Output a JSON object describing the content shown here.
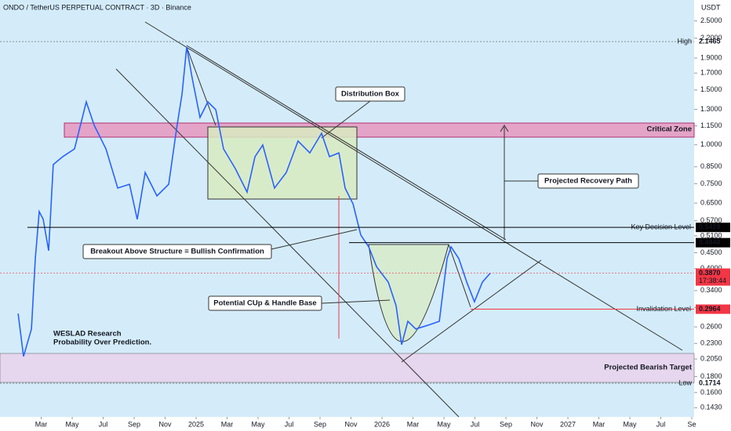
{
  "chart_data": {
    "type": "line",
    "title": "ONDO / TetherUS PERPETUAL CONTRACT · 3D · Binance",
    "currency": "USDT",
    "log_scale": true,
    "x": [
      0.51,
      0.86,
      1.37,
      1.62,
      1.87,
      2.13,
      2.48,
      2.78,
      3.39,
      4.15,
      4.91,
      5.42,
      6.18,
      6.94,
      7.7,
      8.2,
      8.71,
      9.47,
      10.23,
      10.73,
      11.09,
      11.39,
      11.75,
      12.25,
      12.76,
      13.27,
      13.77,
      14.53,
      15.29,
      15.8,
      16.3,
      17.06,
      17.82,
      18.58,
      19.34,
      20.1,
      20.61,
      21.22,
      21.62,
      22.13,
      22.63,
      23.14,
      23.65,
      24.41,
      24.91,
      25.27,
      25.67,
      26.18,
      26.94,
      27.7,
      28.2,
      28.46,
      28.96,
      29.47,
      29.97,
      30.48,
      30.99
    ],
    "series": [
      {
        "name": "ONDOUSDT.P",
        "color": "#2962ff",
        "values": [
          0.287,
          0.209,
          0.256,
          0.431,
          0.61,
          0.576,
          0.457,
          0.864,
          0.916,
          0.97,
          1.374,
          1.155,
          0.97,
          0.726,
          0.747,
          0.576,
          0.815,
          0.685,
          0.747,
          1.121,
          1.456,
          2.061,
          1.635,
          1.224,
          1.374,
          1.297,
          0.97,
          0.839,
          0.705,
          0.916,
          0.999,
          0.726,
          0.815,
          1.028,
          0.942,
          1.089,
          0.916,
          0.942,
          0.726,
          0.646,
          0.513,
          0.47,
          0.406,
          0.362,
          0.304,
          0.228,
          0.271,
          0.256,
          0.263,
          0.271,
          0.431,
          0.47,
          0.431,
          0.362,
          0.313,
          0.362,
          0.387
        ]
      }
    ],
    "xlim": [
      -0.66,
      44.15
    ],
    "xticks": [
      {
        "value": 2,
        "label": "Mar"
      },
      {
        "value": 4,
        "label": "May"
      },
      {
        "value": 6,
        "label": "Jul"
      },
      {
        "value": 8,
        "label": "Sep"
      },
      {
        "value": 10,
        "label": "Nov"
      },
      {
        "value": 12,
        "label": "2025"
      },
      {
        "value": 14,
        "label": "Mar"
      },
      {
        "value": 16,
        "label": "May"
      },
      {
        "value": 18,
        "label": "Jul"
      },
      {
        "value": 20,
        "label": "Sep"
      },
      {
        "value": 22,
        "label": "Nov"
      },
      {
        "value": 24,
        "label": "2026"
      },
      {
        "value": 26,
        "label": "Mar"
      },
      {
        "value": 28,
        "label": "May"
      },
      {
        "value": 30,
        "label": "Jul"
      },
      {
        "value": 32,
        "label": "Sep"
      },
      {
        "value": 34,
        "label": "Nov"
      },
      {
        "value": 36,
        "label": "2027"
      },
      {
        "value": 38,
        "label": "Mar"
      },
      {
        "value": 40,
        "label": "May"
      },
      {
        "value": 42,
        "label": "Jul"
      },
      {
        "value": 44,
        "label": "Se"
      }
    ],
    "ylim": [
      0.1336,
      2.919
    ],
    "yticks": [
      {
        "value": 0.143,
        "label": "0.1430"
      },
      {
        "value": 0.16,
        "label": "0.1600"
      },
      {
        "value": 0.18,
        "label": "0.1800"
      },
      {
        "value": 0.205,
        "label": "0.2050"
      },
      {
        "value": 0.23,
        "label": "0.2300"
      },
      {
        "value": 0.26,
        "label": "0.2600"
      },
      {
        "value": 0.3,
        "label": "0.3000"
      },
      {
        "value": 0.34,
        "label": "0.3400"
      },
      {
        "value": 0.4,
        "label": "0.4000"
      },
      {
        "value": 0.45,
        "label": "0.4500"
      },
      {
        "value": 0.51,
        "label": "0.5100"
      },
      {
        "value": 0.57,
        "label": "0.5700"
      },
      {
        "value": 0.65,
        "label": "0.6500"
      },
      {
        "value": 0.75,
        "label": "0.7500"
      },
      {
        "value": 0.85,
        "label": "0.8500"
      },
      {
        "value": 1,
        "label": "1.0000"
      },
      {
        "value": 1.15,
        "label": "1.1500"
      },
      {
        "value": 1.3,
        "label": "1.3000"
      },
      {
        "value": 1.5,
        "label": "1.5000"
      },
      {
        "value": 1.7,
        "label": "1.7000"
      },
      {
        "value": 1.9,
        "label": "1.9000"
      },
      {
        "value": 2.2,
        "label": "2.2000"
      },
      {
        "value": 2.5,
        "label": "2.5000"
      }
    ],
    "levels": [
      {
        "name": "High",
        "value": 2.1465,
        "color": "#555555"
      },
      {
        "name": "Key Decision Level",
        "value": 0.5428,
        "color": "#000000"
      },
      {
        "value": 0.4848,
        "color": "#000000"
      },
      {
        "value": 0.387,
        "label": "0.3870",
        "countdown": "17:38:44",
        "color": "#f23645"
      },
      {
        "name": "Invalidation Level",
        "value": 0.2964,
        "color": "#f23645"
      },
      {
        "name": "Low",
        "value": 0.1714,
        "color": "#555555"
      }
    ],
    "annotations": {
      "critical_zone": "Critical Zone",
      "distribution_box": "Distribution Box",
      "recovery": "Projected Recovery Path",
      "breakout": "Breakout Above Structure = Bullish Confirmation",
      "cup": "Potential CUp & Handle Base",
      "bearish": "Projected Bearish Target",
      "brand": "WESLAD Research",
      "motto": "Probability Over Prediction."
    }
  }
}
